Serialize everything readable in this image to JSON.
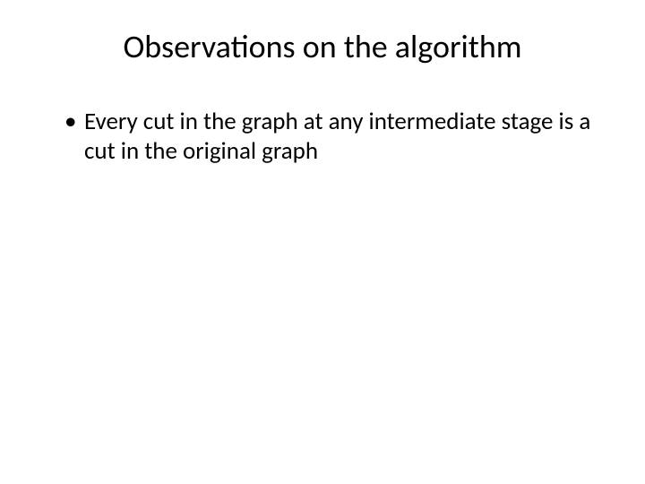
{
  "slide": {
    "title": "Observations on the algorithm",
    "title_fontsize": 36,
    "title_color": "#000000",
    "bullets": [
      "Every cut in the graph at any intermediate stage is a cut in the original graph"
    ],
    "bullet_fontsize": 27,
    "bullet_color": "#000000",
    "background_color": "#ffffff",
    "font_family": "Calibri"
  }
}
